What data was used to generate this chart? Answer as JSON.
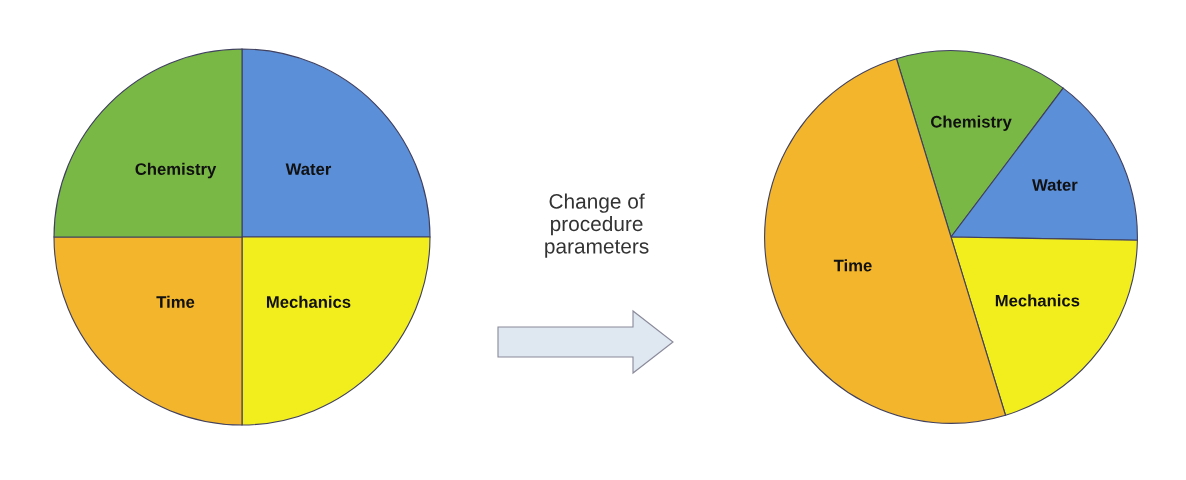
{
  "chart_data": [
    {
      "type": "pie",
      "categories": [
        "Water",
        "Mechanics",
        "Time",
        "Chemistry"
      ],
      "values": [
        25,
        25,
        25,
        25
      ],
      "colors": [
        "#5b8fd8",
        "#f2ee1e",
        "#f2b52c",
        "#79b845"
      ],
      "annotations": [
        "Change of\nprocedure\nparameters"
      ]
    },
    {
      "type": "pie",
      "categories": [
        "Chemistry",
        "Water",
        "Mechanics",
        "Time"
      ],
      "values": [
        15,
        15,
        20,
        50
      ],
      "colors": [
        "#79b845",
        "#5b8fd8",
        "#f2ee1e",
        "#f2b52c"
      ]
    }
  ]
}
